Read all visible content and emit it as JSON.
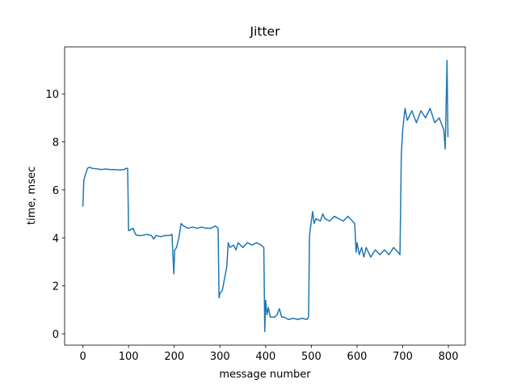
{
  "chart_data": {
    "type": "line",
    "title": "Jitter",
    "x_label": "message number",
    "y_label": "time, msec",
    "x": [
      0,
      2,
      5,
      10,
      15,
      20,
      30,
      40,
      50,
      60,
      70,
      80,
      90,
      95,
      98,
      100,
      105,
      110,
      115,
      120,
      130,
      140,
      150,
      155,
      160,
      170,
      180,
      190,
      195,
      197,
      199,
      201,
      205,
      210,
      215,
      220,
      230,
      240,
      250,
      260,
      270,
      280,
      290,
      296,
      298,
      300,
      305,
      310,
      315,
      318,
      322,
      330,
      335,
      340,
      350,
      360,
      370,
      380,
      390,
      396,
      398,
      400,
      403,
      406,
      410,
      420,
      425,
      430,
      435,
      440,
      450,
      460,
      470,
      480,
      490,
      494,
      496,
      500,
      503,
      506,
      510,
      520,
      525,
      530,
      540,
      550,
      560,
      570,
      580,
      590,
      595,
      598,
      600,
      605,
      610,
      615,
      620,
      630,
      640,
      650,
      660,
      670,
      680,
      690,
      694,
      697,
      700,
      705,
      710,
      720,
      730,
      740,
      750,
      760,
      770,
      780,
      790,
      793,
      795,
      797,
      799
    ],
    "series": [
      {
        "name": "jitter",
        "color": "#1f77b4",
        "values": [
          5.3,
          6.4,
          6.6,
          6.9,
          6.95,
          6.9,
          6.88,
          6.85,
          6.87,
          6.85,
          6.85,
          6.83,
          6.85,
          6.9,
          6.9,
          4.3,
          4.35,
          4.4,
          4.15,
          4.1,
          4.1,
          4.15,
          4.1,
          3.95,
          4.1,
          4.05,
          4.1,
          4.1,
          4.15,
          3.3,
          2.5,
          3.5,
          3.6,
          4.0,
          4.6,
          4.5,
          4.4,
          4.45,
          4.4,
          4.45,
          4.4,
          4.4,
          4.5,
          4.4,
          1.5,
          1.7,
          1.8,
          2.3,
          2.8,
          3.8,
          3.6,
          3.7,
          3.5,
          3.8,
          3.6,
          3.8,
          3.7,
          3.8,
          3.7,
          3.6,
          0.1,
          1.4,
          0.8,
          1.1,
          0.7,
          0.7,
          0.8,
          1.05,
          0.7,
          0.7,
          0.6,
          0.65,
          0.6,
          0.65,
          0.6,
          0.7,
          4.1,
          4.7,
          5.1,
          4.6,
          4.8,
          4.7,
          5.0,
          4.8,
          4.7,
          4.9,
          4.8,
          4.7,
          4.9,
          4.7,
          4.6,
          3.4,
          3.8,
          3.3,
          3.6,
          3.2,
          3.6,
          3.2,
          3.5,
          3.3,
          3.5,
          3.3,
          3.6,
          3.4,
          3.3,
          7.5,
          8.5,
          9.4,
          8.9,
          9.3,
          8.8,
          9.3,
          9.0,
          9.4,
          8.8,
          9.0,
          8.5,
          7.7,
          9.5,
          11.4,
          8.2
        ]
      }
    ],
    "xlim": [
      -40,
      837
    ],
    "ylim": [
      -0.47,
      11.96
    ],
    "xticks": [
      0,
      100,
      200,
      300,
      400,
      500,
      600,
      700,
      800
    ],
    "yticks": [
      0,
      2,
      4,
      6,
      8,
      10
    ],
    "grid": false
  }
}
